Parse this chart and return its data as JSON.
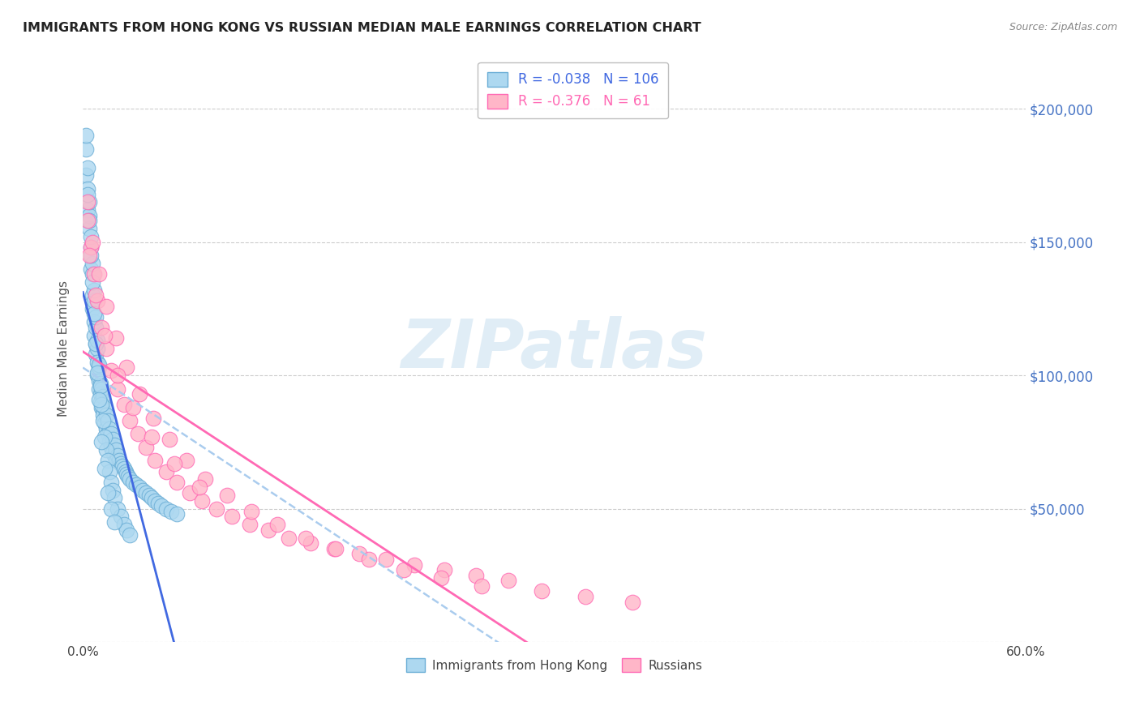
{
  "title": "IMMIGRANTS FROM HONG KONG VS RUSSIAN MEDIAN MALE EARNINGS CORRELATION CHART",
  "source": "Source: ZipAtlas.com",
  "ylabel": "Median Male Earnings",
  "ymin": 0,
  "ymax": 220000,
  "xmin": 0.0,
  "xmax": 0.6,
  "hk_color": "#ADD8F0",
  "hk_edge_color": "#6BAED6",
  "russian_color": "#FFB6C8",
  "russian_edge_color": "#FF69B4",
  "trend_hk_color": "#4169E1",
  "trend_russian_color": "#FF69B4",
  "trend_dash_color": "#AACCEE",
  "hk_R": "-0.038",
  "hk_N": 106,
  "russian_R": "-0.376",
  "russian_N": 61,
  "watermark": "ZIPatlas",
  "ytick_color": "#4472C4",
  "hk_x": [
    0.002,
    0.002,
    0.003,
    0.003,
    0.004,
    0.004,
    0.005,
    0.005,
    0.006,
    0.006,
    0.006,
    0.007,
    0.007,
    0.007,
    0.008,
    0.008,
    0.008,
    0.009,
    0.009,
    0.009,
    0.01,
    0.01,
    0.01,
    0.011,
    0.011,
    0.011,
    0.012,
    0.012,
    0.013,
    0.013,
    0.013,
    0.014,
    0.014,
    0.015,
    0.015,
    0.016,
    0.016,
    0.017,
    0.017,
    0.018,
    0.018,
    0.019,
    0.019,
    0.02,
    0.02,
    0.021,
    0.021,
    0.022,
    0.023,
    0.024,
    0.025,
    0.026,
    0.027,
    0.028,
    0.029,
    0.03,
    0.032,
    0.034,
    0.036,
    0.038,
    0.04,
    0.042,
    0.044,
    0.046,
    0.048,
    0.05,
    0.053,
    0.056,
    0.06,
    0.002,
    0.003,
    0.004,
    0.005,
    0.006,
    0.007,
    0.008,
    0.009,
    0.01,
    0.011,
    0.012,
    0.013,
    0.014,
    0.015,
    0.016,
    0.017,
    0.018,
    0.019,
    0.02,
    0.022,
    0.024,
    0.026,
    0.028,
    0.03,
    0.003,
    0.004,
    0.005,
    0.006,
    0.007,
    0.008,
    0.009,
    0.01,
    0.012,
    0.014,
    0.016,
    0.018,
    0.02
  ],
  "hk_y": [
    175000,
    185000,
    162000,
    170000,
    155000,
    160000,
    148000,
    140000,
    138000,
    130000,
    125000,
    128000,
    120000,
    115000,
    118000,
    112000,
    108000,
    110000,
    105000,
    100000,
    103000,
    98000,
    95000,
    97000,
    93000,
    90000,
    95000,
    88000,
    92000,
    87000,
    85000,
    88000,
    82000,
    85000,
    80000,
    83000,
    78000,
    80000,
    75000,
    78000,
    73000,
    76000,
    71000,
    74000,
    70000,
    72000,
    68000,
    70000,
    68000,
    67000,
    66000,
    65000,
    64000,
    63000,
    62000,
    61000,
    60000,
    59000,
    58000,
    57000,
    56000,
    55000,
    54000,
    53000,
    52000,
    51000,
    50000,
    49000,
    48000,
    190000,
    178000,
    165000,
    152000,
    142000,
    132000,
    122000,
    113000,
    104000,
    96000,
    89000,
    83000,
    77000,
    72000,
    68000,
    64000,
    60000,
    57000,
    54000,
    50000,
    47000,
    44000,
    42000,
    40000,
    168000,
    158000,
    145000,
    135000,
    123000,
    112000,
    101000,
    91000,
    75000,
    65000,
    56000,
    50000,
    45000
  ],
  "ru_x": [
    0.003,
    0.005,
    0.007,
    0.009,
    0.012,
    0.015,
    0.018,
    0.022,
    0.026,
    0.03,
    0.035,
    0.04,
    0.046,
    0.053,
    0.06,
    0.068,
    0.076,
    0.085,
    0.095,
    0.106,
    0.118,
    0.131,
    0.145,
    0.16,
    0.176,
    0.193,
    0.211,
    0.23,
    0.25,
    0.271,
    0.003,
    0.006,
    0.01,
    0.015,
    0.021,
    0.028,
    0.036,
    0.045,
    0.055,
    0.066,
    0.078,
    0.092,
    0.107,
    0.124,
    0.142,
    0.161,
    0.182,
    0.204,
    0.228,
    0.254,
    0.004,
    0.008,
    0.014,
    0.022,
    0.032,
    0.044,
    0.058,
    0.074,
    0.292,
    0.32,
    0.35
  ],
  "ru_y": [
    158000,
    148000,
    138000,
    128000,
    118000,
    110000,
    102000,
    95000,
    89000,
    83000,
    78000,
    73000,
    68000,
    64000,
    60000,
    56000,
    53000,
    50000,
    47000,
    44000,
    42000,
    39000,
    37000,
    35000,
    33000,
    31000,
    29000,
    27000,
    25000,
    23000,
    165000,
    150000,
    138000,
    126000,
    114000,
    103000,
    93000,
    84000,
    76000,
    68000,
    61000,
    55000,
    49000,
    44000,
    39000,
    35000,
    31000,
    27000,
    24000,
    21000,
    145000,
    130000,
    115000,
    100000,
    88000,
    77000,
    67000,
    58000,
    19000,
    17000,
    15000
  ]
}
